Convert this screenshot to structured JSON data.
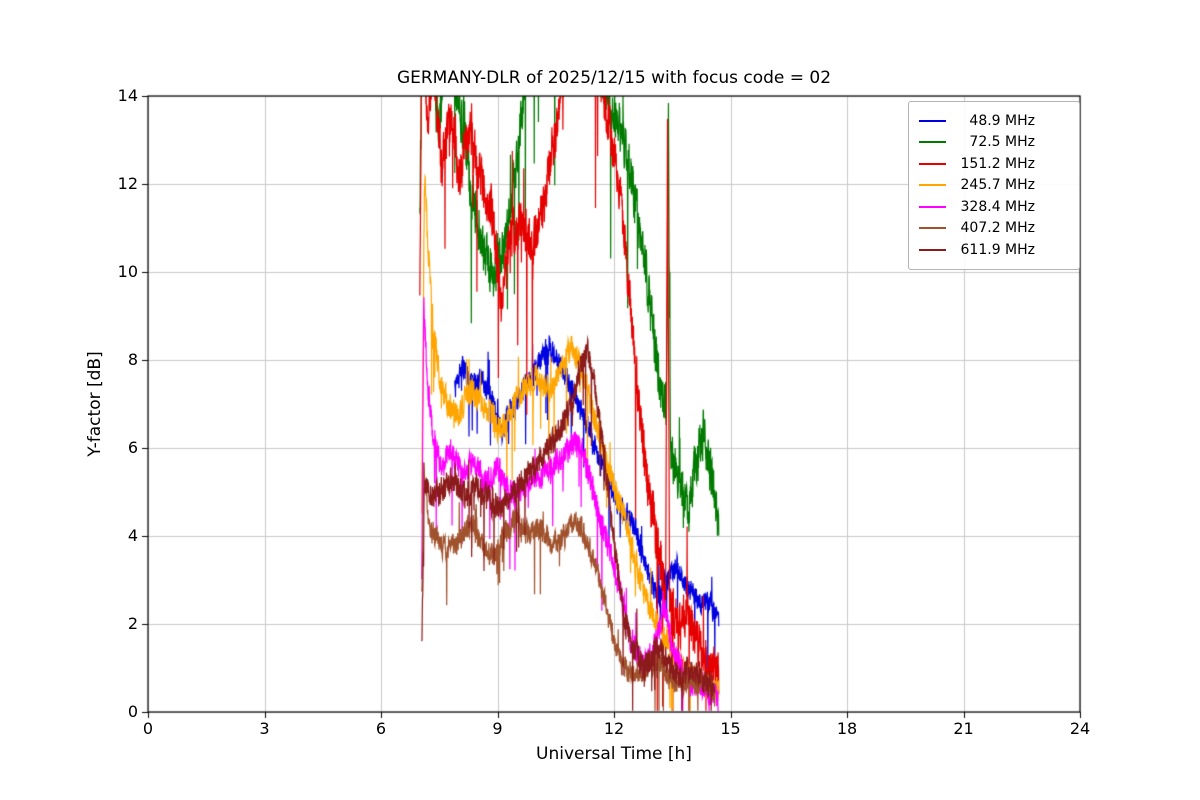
{
  "chart_data": {
    "type": "line",
    "title": "GERMANY-DLR of 2025/12/15 with focus code = 02",
    "xlabel": "Universal Time [h]",
    "ylabel": "Y-factor [dB]",
    "xlim": [
      0,
      24
    ],
    "ylim": [
      0,
      14
    ],
    "xticks": [
      0,
      3,
      6,
      9,
      12,
      15,
      18,
      21,
      24
    ],
    "yticks": [
      0,
      2,
      4,
      6,
      8,
      10,
      12,
      14
    ],
    "grid": true,
    "grid_color": "#c9c9c9",
    "legend_position": "upper right",
    "series": [
      {
        "name": "48.9 MHz",
        "color": "#0000e0",
        "noise": 0.35,
        "points": [
          [
            7.9,
            7.3
          ],
          [
            8.1,
            7.9
          ],
          [
            8.3,
            7.4
          ],
          [
            8.6,
            7.6
          ],
          [
            8.9,
            7.0
          ],
          [
            9.1,
            6.4
          ],
          [
            9.4,
            6.9
          ],
          [
            9.7,
            7.4
          ],
          [
            10.0,
            7.8
          ],
          [
            10.3,
            8.3
          ],
          [
            10.5,
            8.1
          ],
          [
            10.8,
            7.6
          ],
          [
            11.0,
            7.1
          ],
          [
            11.3,
            6.6
          ],
          [
            11.6,
            5.8
          ],
          [
            11.9,
            5.2
          ],
          [
            12.2,
            4.6
          ],
          [
            12.5,
            4.3
          ],
          [
            12.8,
            3.4
          ],
          [
            13.1,
            2.6
          ],
          [
            13.4,
            3.0
          ],
          [
            13.6,
            3.3
          ],
          [
            13.9,
            2.8
          ],
          [
            14.2,
            2.6
          ],
          [
            14.5,
            2.4
          ],
          [
            14.7,
            2.1
          ]
        ]
      },
      {
        "name": "72.5 MHz",
        "color": "#007a00",
        "noise": 0.7,
        "points": [
          [
            7.0,
            11.0
          ],
          [
            7.06,
            16.0
          ],
          [
            7.3,
            14.6
          ],
          [
            7.5,
            13.0
          ],
          [
            7.7,
            15.5
          ],
          [
            8.0,
            14.0
          ],
          [
            8.3,
            12.0
          ],
          [
            8.6,
            10.6
          ],
          [
            8.9,
            9.9
          ],
          [
            9.2,
            10.8
          ],
          [
            9.5,
            12.6
          ],
          [
            9.8,
            15.0
          ],
          [
            10.2,
            16.0
          ],
          [
            10.6,
            15.0
          ],
          [
            11.0,
            16.0
          ],
          [
            11.4,
            15.0
          ],
          [
            11.8,
            14.2
          ],
          [
            12.1,
            13.4
          ],
          [
            12.4,
            12.4
          ],
          [
            12.7,
            10.8
          ],
          [
            13.0,
            8.8
          ],
          [
            13.2,
            7.2
          ],
          [
            13.35,
            7.0
          ],
          [
            13.4,
            13.8
          ],
          [
            13.45,
            6.0
          ],
          [
            13.7,
            5.2
          ],
          [
            13.9,
            4.7
          ],
          [
            14.1,
            5.6
          ],
          [
            14.3,
            6.3
          ],
          [
            14.5,
            5.4
          ],
          [
            14.7,
            4.2
          ]
        ]
      },
      {
        "name": "151.2 MHz",
        "color": "#e60000",
        "noise": 0.7,
        "points": [
          [
            7.0,
            9.7
          ],
          [
            7.05,
            15.8
          ],
          [
            7.2,
            13.2
          ],
          [
            7.35,
            14.8
          ],
          [
            7.55,
            12.4
          ],
          [
            7.8,
            13.6
          ],
          [
            8.0,
            12.2
          ],
          [
            8.3,
            13.1
          ],
          [
            8.6,
            12.0
          ],
          [
            8.85,
            11.4
          ],
          [
            9.1,
            9.3
          ],
          [
            9.3,
            10.6
          ],
          [
            9.6,
            11.2
          ],
          [
            9.9,
            10.4
          ],
          [
            10.2,
            11.6
          ],
          [
            10.5,
            13.2
          ],
          [
            10.8,
            15.0
          ],
          [
            11.2,
            16.0
          ],
          [
            11.6,
            14.6
          ],
          [
            11.9,
            13.2
          ],
          [
            12.1,
            12.0
          ],
          [
            12.3,
            10.6
          ],
          [
            12.5,
            8.4
          ],
          [
            12.7,
            6.4
          ],
          [
            12.9,
            5.0
          ],
          [
            13.1,
            4.0
          ],
          [
            13.33,
            2.6
          ],
          [
            13.38,
            13.5
          ],
          [
            13.43,
            2.4
          ],
          [
            13.7,
            1.9
          ],
          [
            13.9,
            2.3
          ],
          [
            14.1,
            1.6
          ],
          [
            14.3,
            1.3
          ],
          [
            14.5,
            1.0
          ],
          [
            14.7,
            0.8
          ]
        ]
      },
      {
        "name": "245.7 MHz",
        "color": "#ffa500",
        "noise": 0.4,
        "points": [
          [
            7.05,
            4.6
          ],
          [
            7.12,
            12.2
          ],
          [
            7.3,
            9.2
          ],
          [
            7.5,
            7.6
          ],
          [
            7.7,
            7.0
          ],
          [
            8.0,
            6.8
          ],
          [
            8.3,
            7.3
          ],
          [
            8.6,
            7.0
          ],
          [
            8.9,
            6.7
          ],
          [
            9.1,
            6.4
          ],
          [
            9.4,
            7.0
          ],
          [
            9.7,
            7.4
          ],
          [
            10.0,
            7.6
          ],
          [
            10.3,
            7.3
          ],
          [
            10.6,
            7.7
          ],
          [
            10.9,
            8.3
          ],
          [
            11.1,
            8.0
          ],
          [
            11.4,
            7.0
          ],
          [
            11.7,
            6.0
          ],
          [
            12.0,
            5.1
          ],
          [
            12.3,
            4.3
          ],
          [
            12.6,
            3.2
          ],
          [
            12.9,
            2.4
          ],
          [
            13.2,
            1.9
          ],
          [
            13.5,
            1.4
          ],
          [
            13.8,
            1.0
          ],
          [
            14.1,
            0.8
          ],
          [
            14.4,
            0.6
          ],
          [
            14.7,
            0.5
          ]
        ]
      },
      {
        "name": "328.4 MHz",
        "color": "#ff00ff",
        "noise": 0.4,
        "points": [
          [
            7.05,
            3.0
          ],
          [
            7.1,
            9.3
          ],
          [
            7.2,
            7.4
          ],
          [
            7.35,
            6.2
          ],
          [
            7.55,
            5.6
          ],
          [
            7.8,
            5.9
          ],
          [
            8.1,
            5.4
          ],
          [
            8.4,
            5.7
          ],
          [
            8.7,
            5.2
          ],
          [
            9.0,
            5.6
          ],
          [
            9.3,
            4.9
          ],
          [
            9.6,
            5.1
          ],
          [
            9.9,
            5.3
          ],
          [
            10.2,
            5.4
          ],
          [
            10.5,
            5.6
          ],
          [
            10.8,
            5.9
          ],
          [
            11.0,
            6.2
          ],
          [
            11.2,
            5.9
          ],
          [
            11.5,
            4.9
          ],
          [
            11.8,
            3.9
          ],
          [
            12.1,
            3.0
          ],
          [
            12.4,
            1.7
          ],
          [
            12.7,
            1.1
          ],
          [
            13.0,
            1.3
          ],
          [
            13.3,
            2.4
          ],
          [
            13.5,
            1.4
          ],
          [
            13.8,
            0.9
          ],
          [
            14.1,
            0.7
          ],
          [
            14.4,
            0.5
          ],
          [
            14.7,
            0.3
          ]
        ]
      },
      {
        "name": "407.2 MHz",
        "color": "#a0522d",
        "noise": 0.35,
        "points": [
          [
            7.05,
            2.5
          ],
          [
            7.1,
            5.6
          ],
          [
            7.25,
            4.2
          ],
          [
            7.45,
            3.9
          ],
          [
            7.7,
            3.7
          ],
          [
            8.0,
            3.9
          ],
          [
            8.3,
            4.3
          ],
          [
            8.6,
            3.8
          ],
          [
            8.9,
            3.5
          ],
          [
            9.2,
            4.1
          ],
          [
            9.5,
            4.4
          ],
          [
            9.8,
            4.0
          ],
          [
            10.1,
            4.2
          ],
          [
            10.4,
            3.8
          ],
          [
            10.7,
            4.0
          ],
          [
            11.0,
            4.4
          ],
          [
            11.2,
            4.1
          ],
          [
            11.5,
            3.4
          ],
          [
            11.8,
            2.4
          ],
          [
            12.0,
            1.6
          ],
          [
            12.2,
            1.1
          ],
          [
            12.5,
            0.8
          ],
          [
            12.8,
            1.0
          ],
          [
            13.1,
            1.2
          ],
          [
            13.4,
            0.8
          ],
          [
            13.7,
            0.6
          ],
          [
            14.0,
            0.7
          ],
          [
            14.3,
            0.6
          ],
          [
            14.6,
            0.4
          ]
        ]
      },
      {
        "name": "611.9 MHz",
        "color": "#8b1a1a",
        "noise": 0.4,
        "points": [
          [
            7.05,
            1.5
          ],
          [
            7.12,
            5.2
          ],
          [
            7.35,
            4.9
          ],
          [
            7.6,
            5.1
          ],
          [
            7.9,
            5.3
          ],
          [
            8.2,
            4.9
          ],
          [
            8.5,
            5.2
          ],
          [
            8.8,
            4.8
          ],
          [
            9.1,
            4.6
          ],
          [
            9.4,
            5.0
          ],
          [
            9.7,
            5.3
          ],
          [
            10.0,
            5.6
          ],
          [
            10.3,
            6.0
          ],
          [
            10.6,
            6.4
          ],
          [
            10.9,
            7.0
          ],
          [
            11.1,
            7.6
          ],
          [
            11.3,
            8.3
          ],
          [
            11.5,
            7.4
          ],
          [
            11.7,
            6.2
          ],
          [
            11.9,
            4.6
          ],
          [
            12.1,
            3.2
          ],
          [
            12.3,
            2.0
          ],
          [
            12.5,
            1.4
          ],
          [
            12.8,
            1.0
          ],
          [
            13.1,
            1.5
          ],
          [
            13.4,
            1.1
          ],
          [
            13.7,
            0.8
          ],
          [
            14.0,
            1.0
          ],
          [
            14.3,
            0.7
          ],
          [
            14.6,
            0.5
          ]
        ]
      }
    ]
  }
}
